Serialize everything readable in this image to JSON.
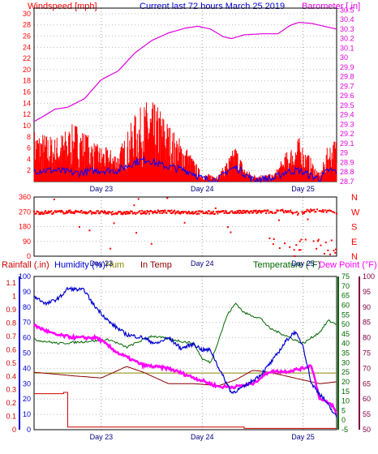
{
  "header": {
    "left_label": "Windspeed [mph]",
    "title": "Current last 72 hours March 25 2019",
    "right_label": "Barometer [.in]"
  },
  "bottom_header": {
    "rainfall": "Rainfall (.in)",
    "humidity": "Humidity (%)",
    "hum": "Hum",
    "in_temp": "In Temp",
    "temperature": "Temperature (°F)",
    "dew_point": "Dew Point (°F)"
  },
  "colors": {
    "wind": "#ff0000",
    "wind_avg": "#0000ff",
    "barometer": "#dd00dd",
    "direction": "#ff0000",
    "rain": "#cc0000",
    "humidity": "#0000cc",
    "hum_in": "#888800",
    "in_temp": "#880000",
    "temperature": "#006600",
    "dew_point": "#ff00ff",
    "rain_axis": "#0000cc",
    "temp_axis": "#006600",
    "dew_axis": "#800040"
  },
  "chart_data": [
    {
      "type": "line",
      "name": "wind-barometer",
      "title": "Current last 72 hours March 25 2019",
      "x_ticks": [
        "Day 23",
        "Day 24",
        "Day 25"
      ],
      "left_axis": {
        "label": "Windspeed [mph]",
        "ticks": [
          2,
          4,
          6,
          8,
          10,
          12,
          14,
          16,
          18,
          20,
          22,
          24,
          26,
          28,
          30
        ],
        "ylim": [
          0,
          31
        ]
      },
      "right_axis": {
        "label": "Barometer [.in]",
        "ticks": [
          "28.7",
          "28.8",
          "28.9",
          "29",
          "29.1",
          "29.2",
          "29.3",
          "29.4",
          "29.5",
          "29.6",
          "29.7",
          "29.8",
          "29.9",
          "30",
          "30.1",
          "30.2",
          "30.3",
          "30.4",
          "30.5"
        ],
        "ylim": [
          28.7,
          30.52
        ]
      },
      "series": [
        {
          "name": "Windspeed",
          "points": [
            [
              0,
              7
            ],
            [
              5,
              6
            ],
            [
              10,
              8
            ],
            [
              15,
              5
            ],
            [
              20,
              4
            ],
            [
              24,
              9
            ],
            [
              27,
              11
            ],
            [
              30,
              10
            ],
            [
              33,
              7
            ],
            [
              36,
              5
            ],
            [
              38,
              3
            ],
            [
              40,
              1
            ],
            [
              44,
              1
            ],
            [
              46,
              3
            ],
            [
              48,
              5
            ],
            [
              50,
              2
            ],
            [
              52,
              1
            ],
            [
              54,
              1
            ],
            [
              57,
              1
            ],
            [
              60,
              4
            ],
            [
              63,
              6
            ],
            [
              66,
              3
            ],
            [
              68,
              1
            ],
            [
              70,
              5
            ],
            [
              72,
              6
            ]
          ]
        },
        {
          "name": "Wind average",
          "points": [
            [
              0,
              2
            ],
            [
              5,
              2
            ],
            [
              10,
              1.5
            ],
            [
              15,
              2
            ],
            [
              20,
              2
            ],
            [
              24,
              3.5
            ],
            [
              27,
              4
            ],
            [
              30,
              3
            ],
            [
              33,
              2.5
            ],
            [
              36,
              2
            ],
            [
              38,
              1.5
            ],
            [
              40,
              0.5
            ],
            [
              44,
              0.3
            ],
            [
              46,
              2
            ],
            [
              48,
              2.5
            ],
            [
              50,
              1.5
            ],
            [
              52,
              0.3
            ],
            [
              54,
              0.5
            ],
            [
              57,
              0.5
            ],
            [
              60,
              1.8
            ],
            [
              63,
              2
            ],
            [
              66,
              1
            ],
            [
              68,
              0.5
            ],
            [
              70,
              2
            ],
            [
              72,
              1.8
            ]
          ]
        },
        {
          "name": "Barometer",
          "points": [
            [
              0,
              29.33
            ],
            [
              2,
              29.38
            ],
            [
              5,
              29.46
            ],
            [
              8,
              29.48
            ],
            [
              12,
              29.57
            ],
            [
              16,
              29.77
            ],
            [
              20,
              29.86
            ],
            [
              24,
              30.05
            ],
            [
              28,
              30.18
            ],
            [
              32,
              30.26
            ],
            [
              36,
              30.31
            ],
            [
              39,
              30.33
            ],
            [
              42,
              30.3
            ],
            [
              45,
              30.22
            ],
            [
              47,
              30.2
            ],
            [
              50,
              30.24
            ],
            [
              54,
              30.25
            ],
            [
              58,
              30.25
            ],
            [
              61,
              30.34
            ],
            [
              63,
              30.37
            ],
            [
              66,
              30.36
            ],
            [
              69,
              30.33
            ],
            [
              72,
              30.3
            ]
          ]
        }
      ]
    },
    {
      "type": "scatter",
      "name": "wind-direction",
      "x_ticks": [
        "Day 23",
        "Day 24",
        "Day 25"
      ],
      "left_axis": {
        "ticks": [
          0,
          90,
          180,
          270,
          360
        ],
        "ylim": [
          0,
          360
        ]
      },
      "right_axis": {
        "ticks": [
          "N",
          "W",
          "S",
          "E",
          "N"
        ]
      },
      "series": [
        {
          "name": "Direction",
          "points": [
            [
              0,
              265
            ],
            [
              10,
              270
            ],
            [
              20,
              262
            ],
            [
              30,
              270
            ],
            [
              40,
              265
            ],
            [
              50,
              268
            ],
            [
              55,
              270
            ],
            [
              56,
              270
            ],
            [
              60,
              275
            ],
            [
              63,
              260
            ],
            [
              66,
              280
            ],
            [
              70,
              270
            ],
            [
              72,
              265
            ]
          ]
        }
      ]
    },
    {
      "type": "line",
      "name": "rain-humidity-temperature",
      "x_ticks": [
        "Day 23",
        "Day 24",
        "Day 25"
      ],
      "left_axis_rain": {
        "label": "Rainfall (.in)",
        "ticks": [
          "0",
          "0.1",
          "0.2",
          "0.3",
          "0.4",
          "0.5",
          "0.6",
          "0.7",
          "0.8",
          "0.9",
          "1",
          "1.1"
        ],
        "ylim": [
          0,
          1.15
        ]
      },
      "left_axis_humidity": {
        "label": "Humidity (%)",
        "ticks": [
          0,
          10,
          20,
          30,
          40,
          50,
          60,
          70,
          80,
          90,
          100
        ],
        "ylim": [
          0,
          100
        ]
      },
      "right_axis_temperature": {
        "label": "Temperature (°F)",
        "ticks": [
          -5,
          0,
          5,
          10,
          15,
          20,
          25,
          30,
          35,
          40,
          45,
          50,
          55,
          60,
          65,
          70,
          75
        ],
        "ylim": [
          -5,
          75
        ]
      },
      "right_axis_dew": {
        "label": "Dew Point (°F)",
        "ticks": [
          50,
          55,
          60,
          65,
          70,
          75,
          80,
          85,
          90,
          95,
          100
        ],
        "ylim": [
          50,
          100
        ]
      },
      "series": [
        {
          "name": "Rainfall",
          "points": [
            [
              0,
              0.27
            ],
            [
              7,
              0.28
            ],
            [
              8,
              0.02
            ],
            [
              12,
              0.02
            ],
            [
              24,
              0.02
            ],
            [
              50,
              0.01
            ],
            [
              72,
              0.01
            ]
          ]
        },
        {
          "name": "Humidity",
          "points": [
            [
              0,
              87
            ],
            [
              3,
              82
            ],
            [
              6,
              86
            ],
            [
              8,
              92
            ],
            [
              12,
              91
            ],
            [
              14,
              82
            ],
            [
              18,
              70
            ],
            [
              22,
              62
            ],
            [
              26,
              60
            ],
            [
              29,
              56
            ],
            [
              32,
              60
            ],
            [
              35,
              53
            ],
            [
              38,
              56
            ],
            [
              40,
              52
            ],
            [
              42,
              52
            ],
            [
              44,
              40
            ],
            [
              47,
              24
            ],
            [
              50,
              28
            ],
            [
              54,
              36
            ],
            [
              57,
              46
            ],
            [
              60,
              58
            ],
            [
              62,
              64
            ],
            [
              64,
              55
            ],
            [
              66,
              30
            ],
            [
              69,
              20
            ],
            [
              72,
              8
            ]
          ]
        },
        {
          "name": "Hum",
          "points": [
            [
              0,
              37
            ],
            [
              72,
              37
            ]
          ]
        },
        {
          "name": "In Temp",
          "points": [
            [
              0,
              25
            ],
            [
              10,
              23
            ],
            [
              16,
              22
            ],
            [
              22,
              28
            ],
            [
              26,
              25
            ],
            [
              32,
              19
            ],
            [
              38,
              19
            ],
            [
              44,
              18
            ],
            [
              48,
              21
            ],
            [
              52,
              26
            ],
            [
              56,
              25
            ],
            [
              60,
              23
            ],
            [
              64,
              21
            ],
            [
              68,
              19
            ],
            [
              72,
              20
            ]
          ]
        },
        {
          "name": "Temperature",
          "points": [
            [
              0,
              42
            ],
            [
              6,
              40
            ],
            [
              12,
              41
            ],
            [
              18,
              42
            ],
            [
              22,
              38
            ],
            [
              28,
              44
            ],
            [
              33,
              42
            ],
            [
              38,
              40
            ],
            [
              40,
              32
            ],
            [
              42,
              30
            ],
            [
              46,
              55
            ],
            [
              48,
              61
            ],
            [
              50,
              56
            ],
            [
              54,
              53
            ],
            [
              56,
              48
            ],
            [
              60,
              44
            ],
            [
              64,
              40
            ],
            [
              68,
              46
            ],
            [
              70,
              52
            ],
            [
              72,
              50
            ]
          ]
        },
        {
          "name": "Dew Point",
          "points": [
            [
              0,
              84
            ],
            [
              5,
              81
            ],
            [
              10,
              80
            ],
            [
              15,
              80
            ],
            [
              20,
              75
            ],
            [
              26,
              71
            ],
            [
              32,
              70
            ],
            [
              38,
              67
            ],
            [
              44,
              64
            ],
            [
              48,
              64
            ],
            [
              52,
              65
            ],
            [
              56,
              69
            ],
            [
              60,
              69
            ],
            [
              64,
              70
            ],
            [
              66,
              71
            ],
            [
              68,
              60
            ],
            [
              71,
              58
            ],
            [
              72,
              55
            ]
          ]
        }
      ]
    }
  ]
}
